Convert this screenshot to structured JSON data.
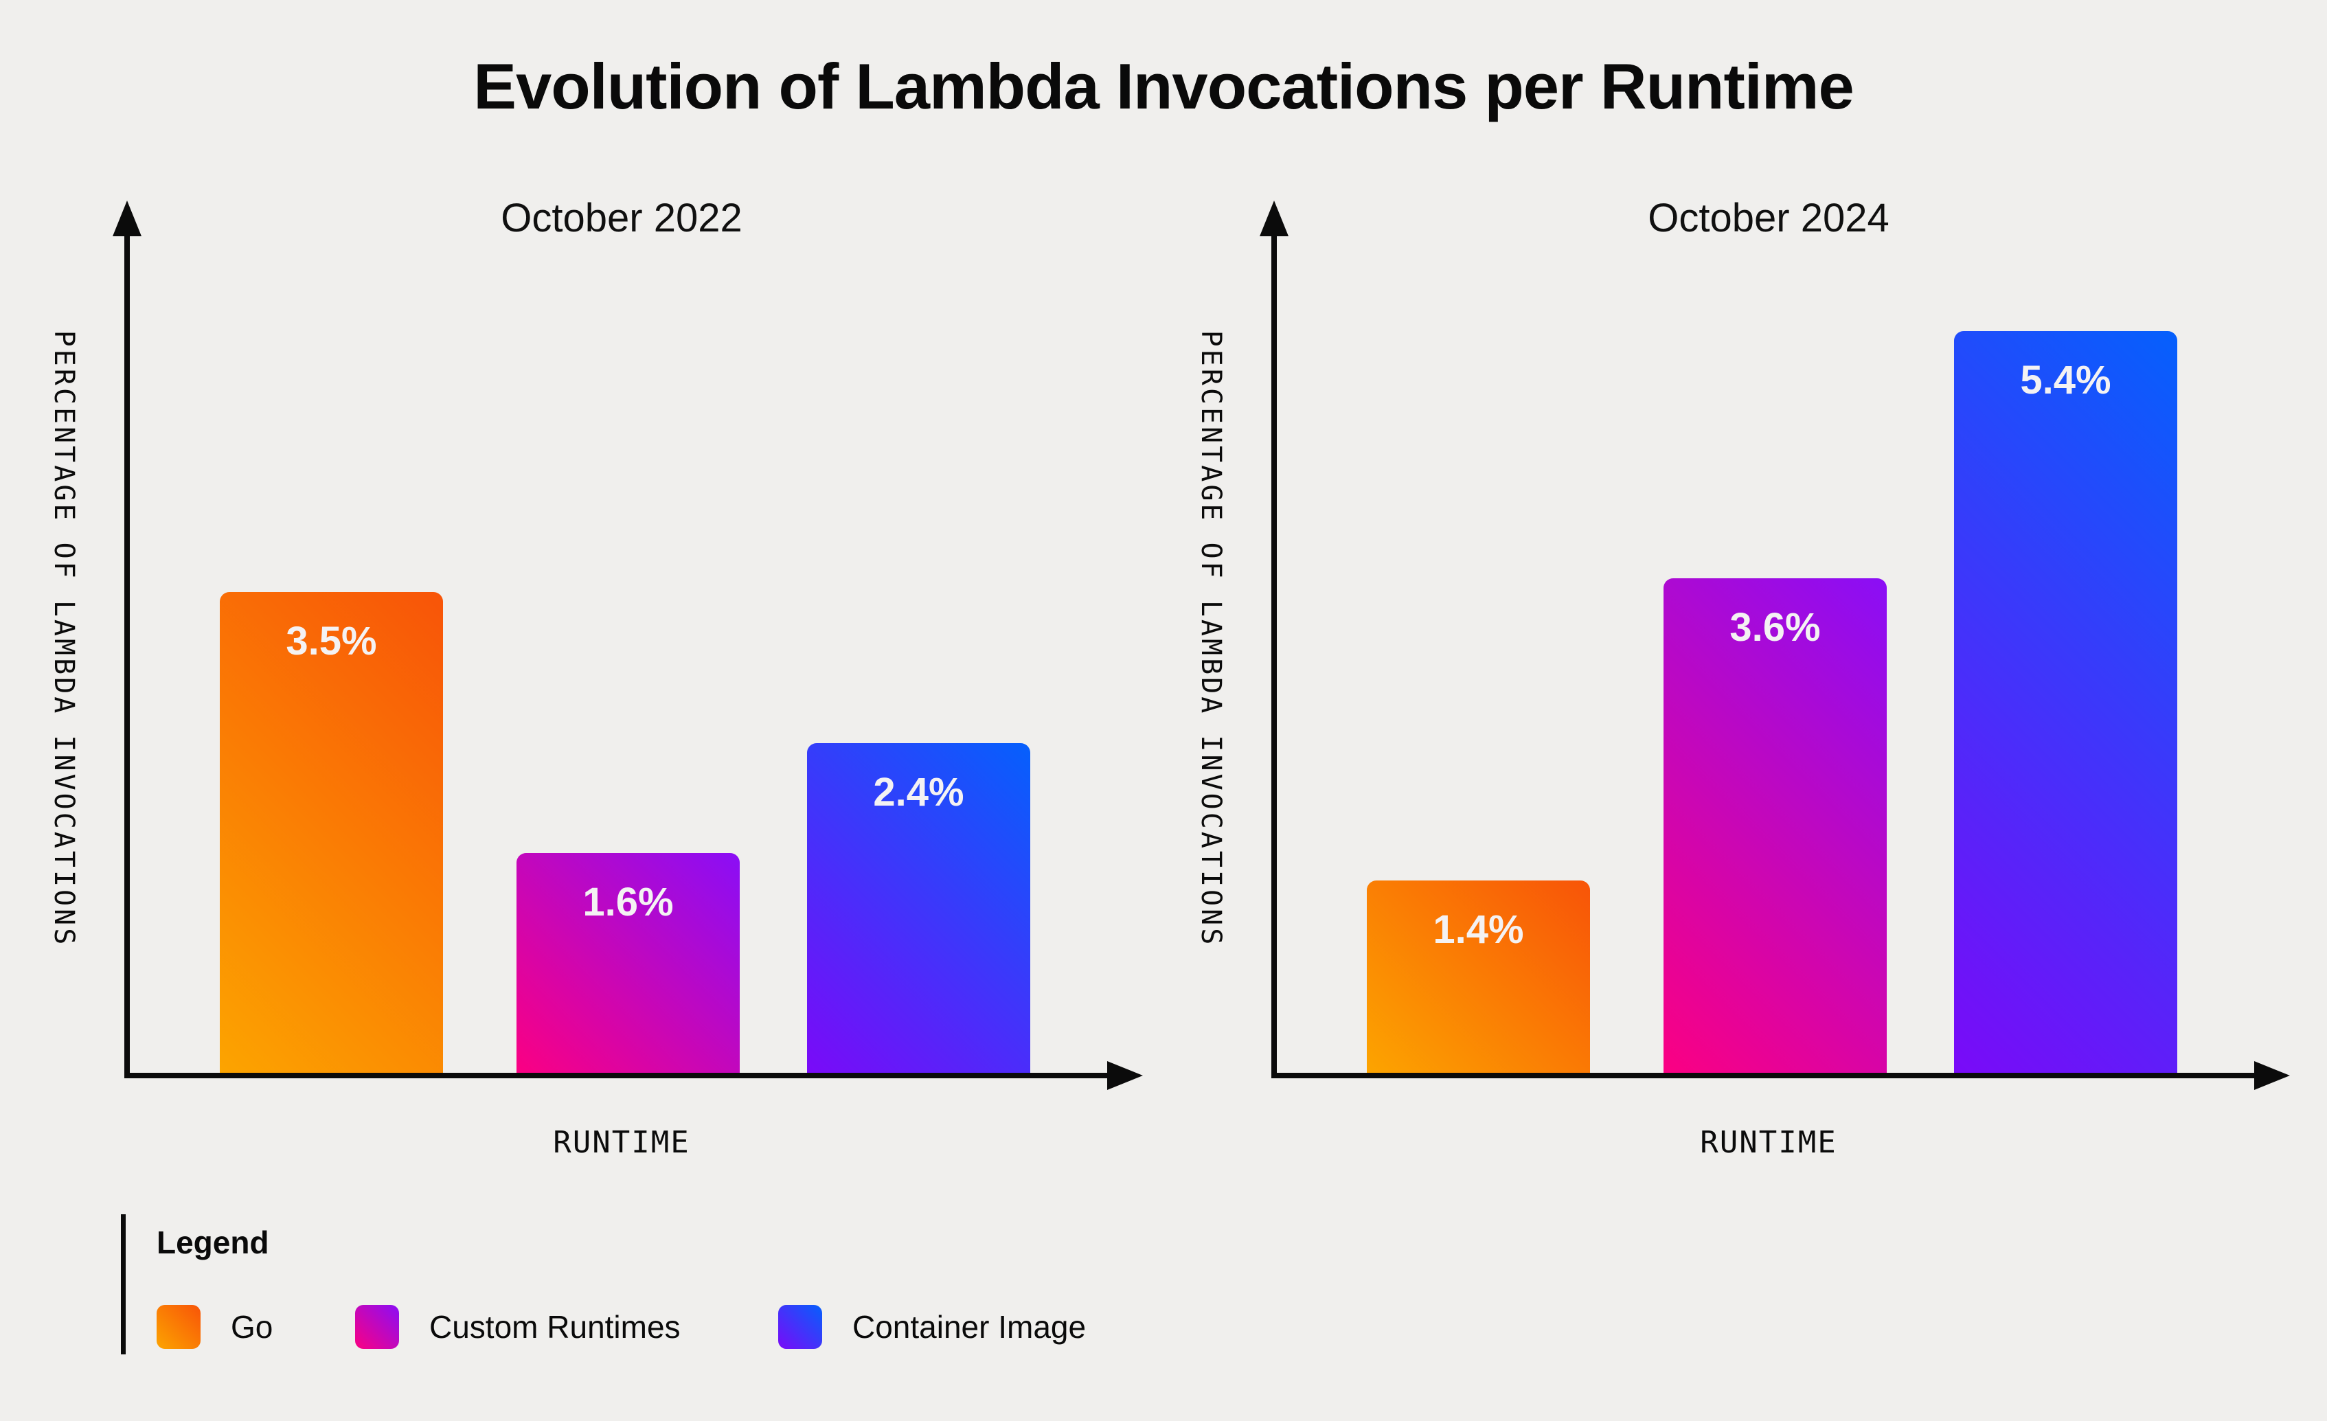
{
  "page": {
    "title": "Evolution of Lambda Invocations per Runtime",
    "background": "#F0EFED"
  },
  "chart_data": [
    {
      "type": "bar",
      "title": "October 2022",
      "xlabel": "RUNTIME",
      "ylabel": "PERCENTAGE OF LAMBDA INVOCATIONS",
      "categories": [
        "Go",
        "Custom Runtimes",
        "Container Image"
      ],
      "values": [
        3.5,
        1.6,
        2.4
      ],
      "value_labels": [
        "3.5%",
        "1.6%",
        "2.4%"
      ],
      "ylim": [
        0,
        6.3
      ],
      "grid": false,
      "axis_arrows": true,
      "legend_position": "bottom-left-shared"
    },
    {
      "type": "bar",
      "title": "October 2024",
      "xlabel": "RUNTIME",
      "ylabel": "PERCENTAGE OF LAMBDA INVOCATIONS",
      "categories": [
        "Go",
        "Custom Runtimes",
        "Container Image"
      ],
      "values": [
        1.4,
        3.6,
        5.4
      ],
      "value_labels": [
        "1.4%",
        "3.6%",
        "5.4%"
      ],
      "ylim": [
        0,
        6.3
      ],
      "grid": false,
      "axis_arrows": true,
      "legend_position": "bottom-left-shared"
    }
  ],
  "series_colors": {
    "Go": {
      "from": "#FCA400",
      "to": "#F85408"
    },
    "Custom Runtimes": {
      "from": "#FB0082",
      "to": "#8A0EF6"
    },
    "Container Image": {
      "from": "#7A0AF8",
      "to": "#0560FC"
    }
  },
  "legend": {
    "title": "Legend",
    "items": [
      {
        "label": "Go",
        "series": "Go"
      },
      {
        "label": "Custom Runtimes",
        "series": "Custom Runtimes"
      },
      {
        "label": "Container Image",
        "series": "Container Image"
      }
    ]
  },
  "style": {
    "ink": "#0B0B0B",
    "bar_label_color": "#F4F2F3"
  }
}
